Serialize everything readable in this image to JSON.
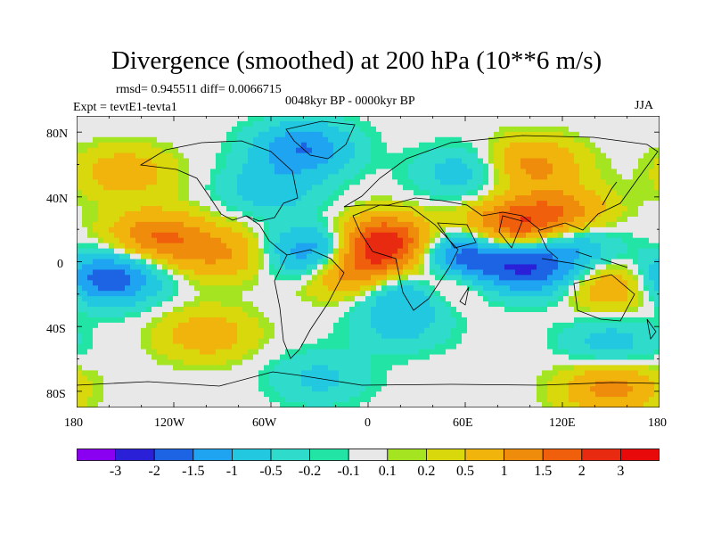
{
  "title": "Divergence (smoothed) at 200 hPa (10**6 m/s)",
  "stats_line": "rmsd= 0.945511 diff= 0.0066715",
  "experiment": "Expt = tevtE1-tevta1",
  "period": "0048kyr BP - 0000kyr BP",
  "season": "JJA",
  "lat_ticks": [
    "80N",
    "40N",
    "0",
    "40S",
    "80S"
  ],
  "lon_ticks": [
    "180",
    "120W",
    "60W",
    "0",
    "60E",
    "120E",
    "180"
  ],
  "colorbar": {
    "labels": [
      "-3",
      "-2",
      "-1.5",
      "-1",
      "-0.5",
      "-0.2",
      "-0.1",
      "0.1",
      "0.2",
      "0.5",
      "1",
      "1.5",
      "2",
      "3"
    ],
    "colors": [
      "#8a00f0",
      "#2a20d8",
      "#1c64e4",
      "#1ea4f0",
      "#22c8e0",
      "#2fdccc",
      "#22e4a4",
      "#e8e8e8",
      "#a4e420",
      "#d8d80c",
      "#f0b40c",
      "#f08c0c",
      "#f0600c",
      "#e82a10",
      "#e80a0a"
    ]
  },
  "chart_data": {
    "type": "heatmap",
    "title": "Divergence (smoothed) at 200 hPa (10**6 m/s)",
    "variable": "divergence",
    "level": "200 hPa",
    "units": "10**6 m/s",
    "season": "JJA",
    "lon_range": [
      -180,
      180
    ],
    "lat_range": [
      -90,
      90
    ],
    "contour_levels": [
      -3,
      -2,
      -1.5,
      -1,
      -0.5,
      -0.2,
      -0.1,
      0.1,
      0.2,
      0.5,
      1,
      1.5,
      2,
      3
    ],
    "features": [
      {
        "lon": 55,
        "lat": 0,
        "value": -3.2
      },
      {
        "lon": 25,
        "lat": -15,
        "value": -1.8
      },
      {
        "lon": -30,
        "lat": 5,
        "value": -2.0
      },
      {
        "lon": -160,
        "lat": -10,
        "value": -2.0
      },
      {
        "lon": 100,
        "lat": -5,
        "value": -1.8
      },
      {
        "lon": 125,
        "lat": 10,
        "value": -1.0
      },
      {
        "lon": -40,
        "lat": 70,
        "value": -1.5
      },
      {
        "lon": 10,
        "lat": 12,
        "value": 2.5
      },
      {
        "lon": 45,
        "lat": -8,
        "value": 2.8
      },
      {
        "lon": -10,
        "lat": -5,
        "value": 2.0
      },
      {
        "lon": -130,
        "lat": 15,
        "value": 1.5
      },
      {
        "lon": 150,
        "lat": -15,
        "value": 1.0
      },
      {
        "lon": 90,
        "lat": 22,
        "value": 1.8
      },
      {
        "lon": 120,
        "lat": 30,
        "value": 1.2
      },
      {
        "lon": -90,
        "lat": 5,
        "value": 1.0
      },
      {
        "lon": -60,
        "lat": 45,
        "value": -0.8
      },
      {
        "lon": 100,
        "lat": 60,
        "value": 1.2
      },
      {
        "lon": 60,
        "lat": 55,
        "value": -0.8
      },
      {
        "lon": -100,
        "lat": -45,
        "value": 0.8
      },
      {
        "lon": 20,
        "lat": -40,
        "value": -0.6
      },
      {
        "lon": 150,
        "lat": -50,
        "value": -0.7
      },
      {
        "lon": 150,
        "lat": -78,
        "value": 1.2
      },
      {
        "lon": -30,
        "lat": -72,
        "value": -0.6
      },
      {
        "lon": -150,
        "lat": 55,
        "value": 0.8
      }
    ]
  }
}
